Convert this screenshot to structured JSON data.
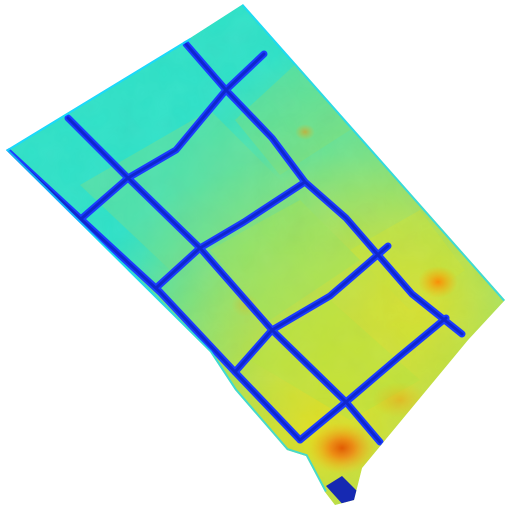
{
  "image": {
    "description_kind": "thermal-style false-color image of a solar panel grid",
    "colors": {
      "background": "#ffffff",
      "panel_cool": "#2fe2c8",
      "panel_mid": "#8ee36a",
      "panel_warm": "#d9e33a",
      "hotspot": "#f08a10",
      "hotspot_core": "#e35a00",
      "grid_lines": "#1a3cff",
      "grid_lines_dark": "#0d1fb8",
      "edge_glow": "#18d8ff"
    }
  }
}
